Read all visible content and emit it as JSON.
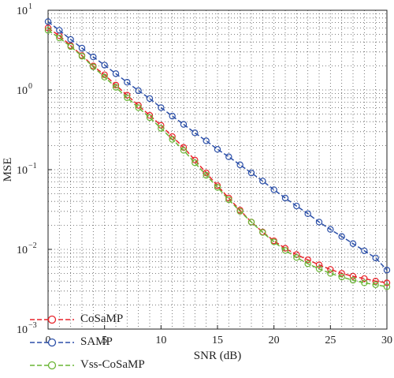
{
  "chart_data": {
    "type": "line",
    "xlabel": "SNR (dB)",
    "ylabel": "MSE",
    "xlim": [
      0,
      30
    ],
    "ylim": [
      0.001,
      10
    ],
    "yscale": "log",
    "x_ticks": [
      0,
      5,
      10,
      15,
      20,
      25,
      30
    ],
    "y_ticks": [
      {
        "value": 10,
        "base": "10",
        "exp": "1"
      },
      {
        "value": 1,
        "base": "10",
        "exp": "0"
      },
      {
        "value": 0.1,
        "base": "10",
        "exp": "−1"
      },
      {
        "value": 0.01,
        "base": "10",
        "exp": "−2"
      },
      {
        "value": 0.001,
        "base": "10",
        "exp": "−3"
      }
    ],
    "grid": "dotted",
    "legend_position": "below",
    "x": [
      0,
      1,
      2,
      3,
      4,
      5,
      6,
      7,
      8,
      9,
      10,
      11,
      12,
      13,
      14,
      15,
      16,
      17,
      18,
      19,
      20,
      21,
      22,
      23,
      24,
      25,
      26,
      27,
      28,
      29,
      30
    ],
    "series": [
      {
        "name": "CoSaMP",
        "color": "#e8232a",
        "values": [
          6.0,
          4.8,
          3.6,
          2.7,
          2.0,
          1.55,
          1.15,
          0.86,
          0.64,
          0.48,
          0.36,
          0.26,
          0.19,
          0.132,
          0.091,
          0.063,
          0.044,
          0.031,
          0.022,
          0.0165,
          0.0128,
          0.0103,
          0.0086,
          0.0074,
          0.0064,
          0.0056,
          0.005,
          0.0046,
          0.0043,
          0.004,
          0.0038
        ]
      },
      {
        "name": "SAMP",
        "color": "#2b4fa8",
        "values": [
          7.2,
          5.6,
          4.3,
          3.35,
          2.6,
          2.05,
          1.6,
          1.25,
          0.98,
          0.78,
          0.6,
          0.47,
          0.37,
          0.29,
          0.23,
          0.18,
          0.145,
          0.115,
          0.091,
          0.072,
          0.056,
          0.044,
          0.035,
          0.028,
          0.022,
          0.0178,
          0.0145,
          0.0118,
          0.0096,
          0.0078,
          0.0055
        ]
      },
      {
        "name": "Vss-CoSaMP",
        "color": "#6ab535",
        "values": [
          5.6,
          4.5,
          3.5,
          2.65,
          1.95,
          1.45,
          1.08,
          0.8,
          0.6,
          0.45,
          0.33,
          0.24,
          0.175,
          0.122,
          0.085,
          0.06,
          0.042,
          0.03,
          0.022,
          0.0163,
          0.0124,
          0.0097,
          0.0079,
          0.0066,
          0.0057,
          0.005,
          0.0045,
          0.0041,
          0.0038,
          0.0036,
          0.0034
        ]
      }
    ]
  }
}
